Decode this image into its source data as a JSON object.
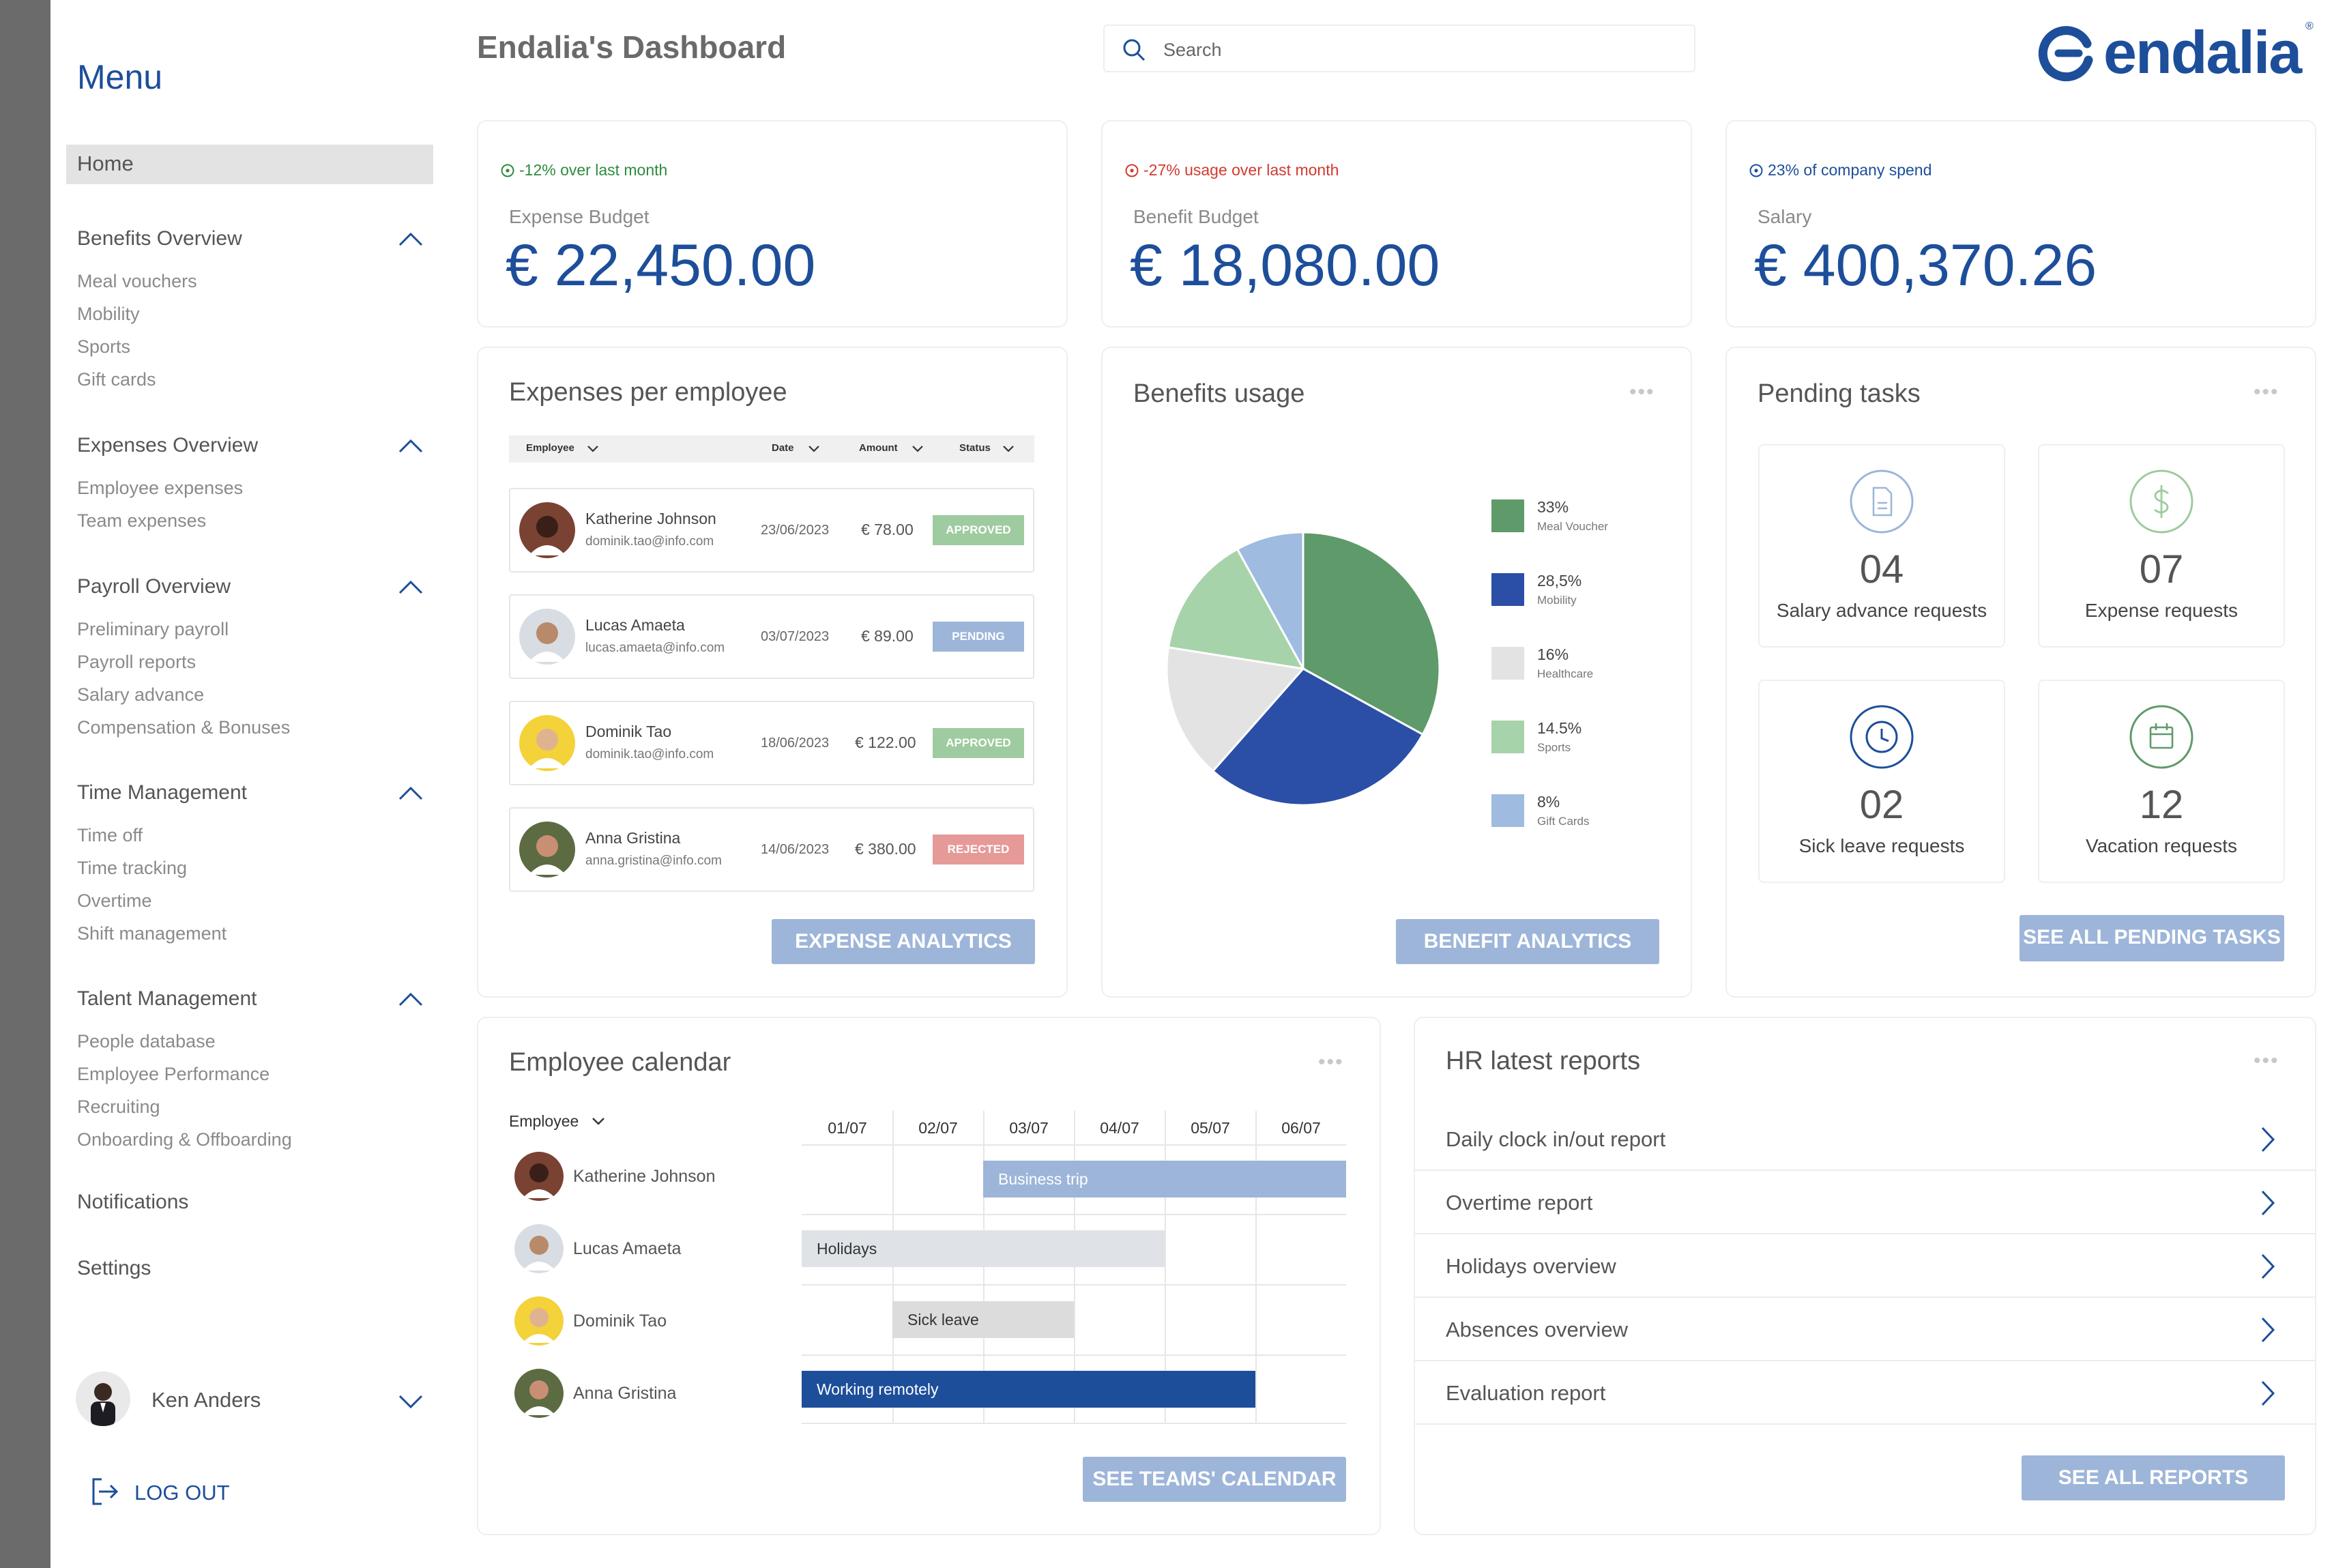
{
  "header": {
    "title": "Endalia's Dashboard",
    "search_placeholder": "Search",
    "logo_text": "endalia",
    "logo_mark": "®"
  },
  "sidebar": {
    "menu_title": "Menu",
    "home": "Home",
    "sections": [
      {
        "title": "Benefits Overview",
        "items": [
          "Meal vouchers",
          "Mobility",
          "Sports",
          "Gift cards"
        ]
      },
      {
        "title": "Expenses Overview",
        "items": [
          "Employee expenses",
          "Team expenses"
        ]
      },
      {
        "title": "Payroll Overview",
        "items": [
          "Preliminary payroll",
          "Payroll reports",
          "Salary advance",
          "Compensation & Bonuses"
        ]
      },
      {
        "title": "Time Management",
        "items": [
          "Time off",
          "Time tracking",
          "Overtime",
          "Shift management"
        ]
      },
      {
        "title": "Talent Management",
        "items": [
          "People database",
          "Employee Performance",
          "Recruiting",
          "Onboarding & Offboarding"
        ]
      }
    ],
    "notifications": "Notifications",
    "settings": "Settings",
    "user_name": "Ken Anders",
    "logout": "LOG OUT"
  },
  "kpis": [
    {
      "delta": "-12% over last month",
      "delta_color": "#2e8b3e",
      "label": "Expense Budget",
      "value": "€ 22,450.00"
    },
    {
      "delta": "-27% usage over last month",
      "delta_color": "#d2392f",
      "label": "Benefit Budget",
      "value": "€ 18,080.00"
    },
    {
      "delta": "23% of company spend",
      "delta_color": "#1d4e9a",
      "label": "Salary",
      "value": "€ 400,370.26"
    }
  ],
  "expenses": {
    "title": "Expenses per employee",
    "columns": [
      "Employee",
      "Date",
      "Amount",
      "Status"
    ],
    "rows": [
      {
        "name": "Katherine Johnson",
        "email": "dominik.tao@info.com",
        "date": "23/06/2023",
        "amount": "€ 78.00",
        "status": "APPROVED",
        "status_color": "#9ecb9f"
      },
      {
        "name": "Lucas Amaeta",
        "email": "lucas.amaeta@info.com",
        "date": "03/07/2023",
        "amount": "€ 89.00",
        "status": "PENDING",
        "status_color": "#9db5d9"
      },
      {
        "name": "Dominik Tao",
        "email": "dominik.tao@info.com",
        "date": "18/06/2023",
        "amount": "€ 122.00",
        "status": "APPROVED",
        "status_color": "#9ecb9f"
      },
      {
        "name": "Anna Gristina",
        "email": "anna.gristina@info.com",
        "date": "14/06/2023",
        "amount": "€ 380.00",
        "status": "REJECTED",
        "status_color": "#e59a98"
      }
    ],
    "button": "EXPENSE ANALYTICS"
  },
  "benefits": {
    "title": "Benefits usage",
    "button": "BENEFIT ANALYTICS",
    "legend": [
      {
        "pct": "33%",
        "name": "Meal Voucher",
        "color": "#5f9a6a"
      },
      {
        "pct": "28,5%",
        "name": "Mobility",
        "color": "#2b4fa6"
      },
      {
        "pct": "16%",
        "name": "Healthcare",
        "color": "#e3e3e3"
      },
      {
        "pct": "14.5%",
        "name": "Sports",
        "color": "#a7d3aa"
      },
      {
        "pct": "8%",
        "name": "Gift Cards",
        "color": "#9fbbe0"
      }
    ]
  },
  "chart_data": {
    "type": "pie",
    "categories": [
      "Meal Voucher",
      "Mobility",
      "Healthcare",
      "Sports",
      "Gift Cards"
    ],
    "values": [
      33,
      28.5,
      16,
      14.5,
      8
    ],
    "colors": [
      "#5f9a6a",
      "#2b4fa6",
      "#e3e3e3",
      "#a7d3aa",
      "#9fbbe0"
    ],
    "legend_position": "right"
  },
  "pending": {
    "title": "Pending tasks",
    "tiles": [
      {
        "count": "04",
        "label": "Salary advance requests",
        "icon": "document-icon",
        "color": "#9db5d9"
      },
      {
        "count": "07",
        "label": "Expense requests",
        "icon": "dollar-icon",
        "color": "#9ecb9f"
      },
      {
        "count": "02",
        "label": "Sick leave requests",
        "icon": "clock-icon",
        "color": "#1d4e9a"
      },
      {
        "count": "12",
        "label": "Vacation requests",
        "icon": "calendar-icon",
        "color": "#5f9a6a"
      }
    ],
    "button": "SEE ALL PENDING TASKS"
  },
  "calendar": {
    "title": "Employee calendar",
    "employee_filter": "Employee",
    "dates": [
      "01/07",
      "02/07",
      "03/07",
      "04/07",
      "05/07",
      "06/07"
    ],
    "employees": [
      "Katherine Johnson",
      "Lucas Amaeta",
      "Dominik Tao",
      "Anna Gristina"
    ],
    "events": [
      {
        "row": 0,
        "label": "Business trip",
        "start": 2,
        "end": 6,
        "bg": "#9db5d9",
        "fg": "#ffffff"
      },
      {
        "row": 1,
        "label": "Holidays",
        "start": 0,
        "end": 4,
        "bg": "#dfe3e8",
        "fg": "#333333"
      },
      {
        "row": 2,
        "label": "Sick leave",
        "start": 1,
        "end": 3,
        "bg": "#dcdcdc",
        "fg": "#333333"
      },
      {
        "row": 3,
        "label": "Working remotely",
        "start": 0,
        "end": 5,
        "bg": "#1d4e9a",
        "fg": "#ffffff"
      }
    ],
    "button": "SEE TEAMS' CALENDAR"
  },
  "reports": {
    "title": "HR latest reports",
    "items": [
      "Daily clock in/out report",
      "Overtime report",
      "Holidays overview",
      "Absences overview",
      "Evaluation report"
    ],
    "button": "SEE ALL REPORTS"
  }
}
